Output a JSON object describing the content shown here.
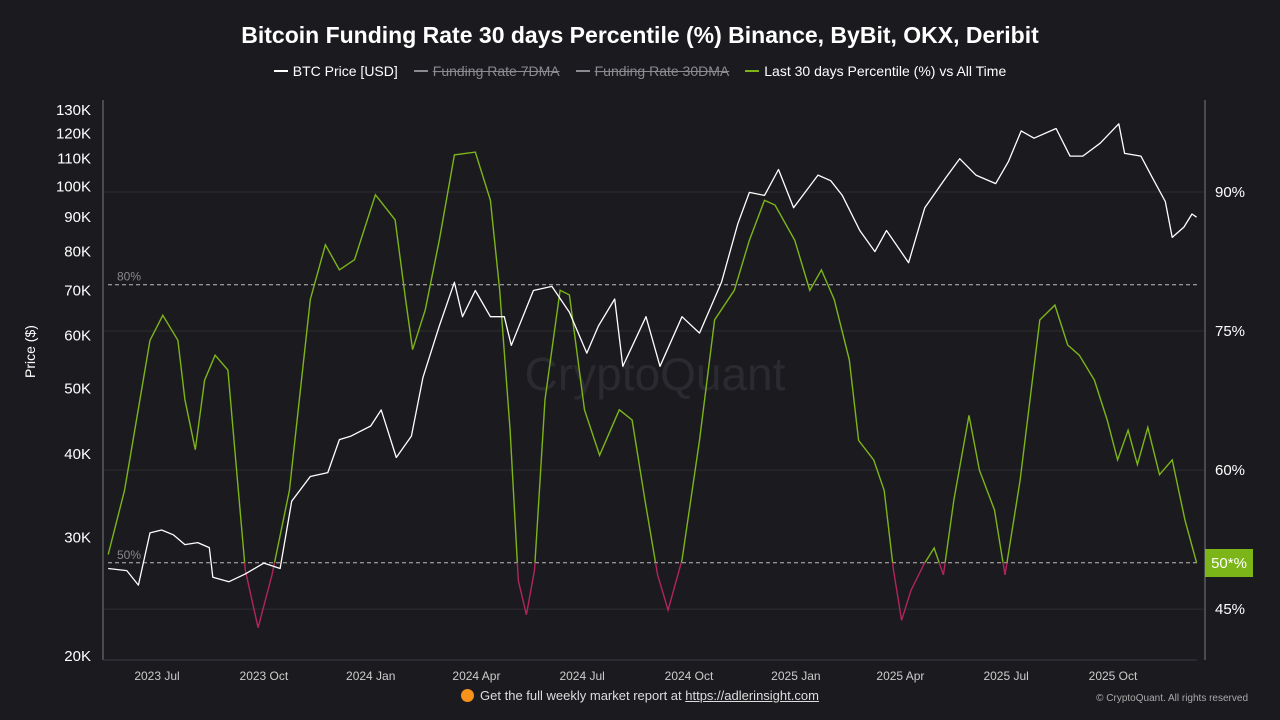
{
  "chart_data": {
    "type": "line",
    "title": "Bitcoin Funding Rate 30 days Percentile (%) Binance, ByBit, OKX, Deribit",
    "legend": [
      {
        "label": "BTC Price [USD]",
        "color": "#ffffff",
        "active": true
      },
      {
        "label": "Funding Rate 7DMA",
        "color": "#8a8a90",
        "active": false
      },
      {
        "label": "Funding Rate 30DMA",
        "color": "#8a8a90",
        "active": false
      },
      {
        "label": "Last 30 days Percentile (%) vs All Time",
        "color": "#7cb518",
        "active": true
      }
    ],
    "legend_position": "top",
    "ylabel_left": "Price ($)",
    "y_left_scale": "log",
    "y_left_ticks": [
      "130K",
      "120K",
      "110K",
      "100K",
      "90K",
      "80K",
      "70K",
      "60K",
      "50K",
      "40K",
      "30K",
      "20K"
    ],
    "y_left_tick_values": [
      130000,
      120000,
      110000,
      100000,
      90000,
      80000,
      70000,
      60000,
      50000,
      40000,
      30000,
      20000
    ],
    "y_right_ticks": [
      "90%",
      "75%",
      "60%",
      "45%"
    ],
    "y_right_tick_values": [
      90,
      75,
      60,
      45
    ],
    "x_ticks": [
      "2023 Jul",
      "2023 Oct",
      "2024 Jan",
      "2024 Apr",
      "2024 Jul",
      "2024 Oct",
      "2025 Jan",
      "2025 Apr",
      "2025 Jul",
      "2025 Oct"
    ],
    "x_tick_dates": [
      "2023-07-01",
      "2023-10-01",
      "2024-01-01",
      "2024-04-01",
      "2024-07-01",
      "2024-10-01",
      "2025-01-01",
      "2025-04-01",
      "2025-07-01",
      "2025-10-01"
    ],
    "reference_lines": [
      {
        "label": "80%",
        "value": 80
      },
      {
        "label": "50%",
        "value": 50
      }
    ],
    "last_value_badge": "50*%",
    "below_50_color": "#b3245e",
    "series": [
      {
        "name": "BTC Price [USD]",
        "axis": "left",
        "color": "#ffffff",
        "points": [
          [
            "2023-05-20",
            27000
          ],
          [
            "2023-06-05",
            26800
          ],
          [
            "2023-06-15",
            25500
          ],
          [
            "2023-06-25",
            30500
          ],
          [
            "2023-07-05",
            30800
          ],
          [
            "2023-07-15",
            30300
          ],
          [
            "2023-07-25",
            29300
          ],
          [
            "2023-08-05",
            29500
          ],
          [
            "2023-08-15",
            29000
          ],
          [
            "2023-08-18",
            26200
          ],
          [
            "2023-09-01",
            25800
          ],
          [
            "2023-09-15",
            26500
          ],
          [
            "2023-10-01",
            27500
          ],
          [
            "2023-10-15",
            27000
          ],
          [
            "2023-10-25",
            34000
          ],
          [
            "2023-11-10",
            37000
          ],
          [
            "2023-11-25",
            37500
          ],
          [
            "2023-12-05",
            42000
          ],
          [
            "2023-12-15",
            42500
          ],
          [
            "2024-01-01",
            44000
          ],
          [
            "2024-01-10",
            46500
          ],
          [
            "2024-01-23",
            39500
          ],
          [
            "2024-02-05",
            42500
          ],
          [
            "2024-02-15",
            52000
          ],
          [
            "2024-02-29",
            62000
          ],
          [
            "2024-03-13",
            72000
          ],
          [
            "2024-03-20",
            64000
          ],
          [
            "2024-03-31",
            70000
          ],
          [
            "2024-04-13",
            64000
          ],
          [
            "2024-04-25",
            64000
          ],
          [
            "2024-05-01",
            58000
          ],
          [
            "2024-05-20",
            70000
          ],
          [
            "2024-06-05",
            71000
          ],
          [
            "2024-06-20",
            65000
          ],
          [
            "2024-07-05",
            56500
          ],
          [
            "2024-07-15",
            62000
          ],
          [
            "2024-07-29",
            68000
          ],
          [
            "2024-08-05",
            54000
          ],
          [
            "2024-08-25",
            64000
          ],
          [
            "2024-09-06",
            54000
          ],
          [
            "2024-09-25",
            64000
          ],
          [
            "2024-10-10",
            60500
          ],
          [
            "2024-10-29",
            72000
          ],
          [
            "2024-11-12",
            88000
          ],
          [
            "2024-11-22",
            98000
          ],
          [
            "2024-12-05",
            97000
          ],
          [
            "2024-12-17",
            106000
          ],
          [
            "2024-12-30",
            93000
          ],
          [
            "2025-01-07",
            97000
          ],
          [
            "2025-01-20",
            104000
          ],
          [
            "2025-01-31",
            102000
          ],
          [
            "2025-02-10",
            97000
          ],
          [
            "2025-02-25",
            86000
          ],
          [
            "2025-03-10",
            80000
          ],
          [
            "2025-03-20",
            86000
          ],
          [
            "2025-04-08",
            77000
          ],
          [
            "2025-04-22",
            93000
          ],
          [
            "2025-05-10",
            103000
          ],
          [
            "2025-05-22",
            110000
          ],
          [
            "2025-06-05",
            104000
          ],
          [
            "2025-06-22",
            101000
          ],
          [
            "2025-07-03",
            109000
          ],
          [
            "2025-07-14",
            121000
          ],
          [
            "2025-07-25",
            118000
          ],
          [
            "2025-08-13",
            122000
          ],
          [
            "2025-08-25",
            111000
          ],
          [
            "2025-09-05",
            111000
          ],
          [
            "2025-09-20",
            116000
          ],
          [
            "2025-10-06",
            124000
          ],
          [
            "2025-10-11",
            112000
          ],
          [
            "2025-10-25",
            111000
          ],
          [
            "2025-11-04",
            103000
          ],
          [
            "2025-11-15",
            95000
          ],
          [
            "2025-11-21",
            84000
          ],
          [
            "2025-12-01",
            87000
          ],
          [
            "2025-12-08",
            91000
          ],
          [
            "2025-12-12",
            90000
          ]
        ]
      },
      {
        "name": "Last 30 days Percentile (%) vs All Time",
        "axis": "right",
        "color": "#7cb518",
        "points": [
          [
            "2023-05-20",
            50.9
          ],
          [
            "2023-06-03",
            57.8
          ],
          [
            "2023-06-25",
            74
          ],
          [
            "2023-07-06",
            76.7
          ],
          [
            "2023-07-19",
            74
          ],
          [
            "2023-07-25",
            67.6
          ],
          [
            "2023-08-03",
            62.2
          ],
          [
            "2023-08-11",
            69.7
          ],
          [
            "2023-08-20",
            72.4
          ],
          [
            "2023-08-31",
            70.8
          ],
          [
            "2023-09-06",
            62.2
          ],
          [
            "2023-09-15",
            49.2
          ],
          [
            "2023-09-26",
            43
          ],
          [
            "2023-10-08",
            48.7
          ],
          [
            "2023-10-23",
            57.8
          ],
          [
            "2023-11-10",
            78.4
          ],
          [
            "2023-11-23",
            84.3
          ],
          [
            "2023-12-05",
            81.6
          ],
          [
            "2023-12-18",
            82.7
          ],
          [
            "2024-01-05",
            89.7
          ],
          [
            "2024-01-22",
            87
          ],
          [
            "2024-01-31",
            78.4
          ],
          [
            "2024-02-06",
            73
          ],
          [
            "2024-02-17",
            77.3
          ],
          [
            "2024-02-29",
            84.8
          ],
          [
            "2024-03-13",
            94
          ],
          [
            "2024-03-31",
            94.3
          ],
          [
            "2024-04-13",
            89.1
          ],
          [
            "2024-04-21",
            79.4
          ],
          [
            "2024-04-30",
            64.3
          ],
          [
            "2024-05-07",
            48.1
          ],
          [
            "2024-05-14",
            44.4
          ],
          [
            "2024-05-21",
            49.2
          ],
          [
            "2024-05-30",
            67.6
          ],
          [
            "2024-06-12",
            79.4
          ],
          [
            "2024-06-20",
            78.9
          ],
          [
            "2024-07-03",
            66.5
          ],
          [
            "2024-07-16",
            61.6
          ],
          [
            "2024-08-02",
            66.5
          ],
          [
            "2024-08-13",
            65.4
          ],
          [
            "2024-08-24",
            56.8
          ],
          [
            "2024-09-04",
            48.7
          ],
          [
            "2024-09-13",
            44.9
          ],
          [
            "2024-09-25",
            50.3
          ],
          [
            "2024-10-10",
            63.2
          ],
          [
            "2024-10-23",
            76.2
          ],
          [
            "2024-11-09",
            79.4
          ],
          [
            "2024-11-22",
            84.8
          ],
          [
            "2024-12-05",
            89.1
          ],
          [
            "2024-12-14",
            88.6
          ],
          [
            "2024-12-31",
            84.8
          ],
          [
            "2025-01-13",
            79.4
          ],
          [
            "2025-01-23",
            81.6
          ],
          [
            "2025-02-03",
            78.4
          ],
          [
            "2025-02-16",
            71.9
          ],
          [
            "2025-02-24",
            63.2
          ],
          [
            "2025-03-09",
            61.1
          ],
          [
            "2025-03-18",
            57.8
          ],
          [
            "2025-03-26",
            49.2
          ],
          [
            "2025-04-02",
            43.8
          ],
          [
            "2025-04-10",
            47
          ],
          [
            "2025-04-21",
            49.8
          ],
          [
            "2025-04-30",
            51.6
          ],
          [
            "2025-05-08",
            48.7
          ],
          [
            "2025-05-17",
            56.8
          ],
          [
            "2025-05-30",
            65.9
          ],
          [
            "2025-06-08",
            60
          ],
          [
            "2025-06-21",
            55.7
          ],
          [
            "2025-06-30",
            48.7
          ],
          [
            "2025-07-13",
            58.9
          ],
          [
            "2025-07-30",
            76.2
          ],
          [
            "2025-08-12",
            77.8
          ],
          [
            "2025-08-23",
            73.5
          ],
          [
            "2025-09-02",
            72.4
          ],
          [
            "2025-09-15",
            69.7
          ],
          [
            "2025-09-26",
            65.4
          ],
          [
            "2025-10-05",
            61.1
          ],
          [
            "2025-10-14",
            64.3
          ],
          [
            "2025-10-22",
            60.6
          ],
          [
            "2025-10-31",
            64.6
          ],
          [
            "2025-11-10",
            59.5
          ],
          [
            "2025-11-21",
            61.1
          ],
          [
            "2025-12-02",
            54.6
          ],
          [
            "2025-12-12",
            50
          ]
        ]
      }
    ]
  },
  "watermark": "CryptoQuant",
  "footer": {
    "text": "Get the full weekly market report at ",
    "link": "https://adlerinsight.com",
    "copyright": "© CryptoQuant. All rights reserved"
  }
}
